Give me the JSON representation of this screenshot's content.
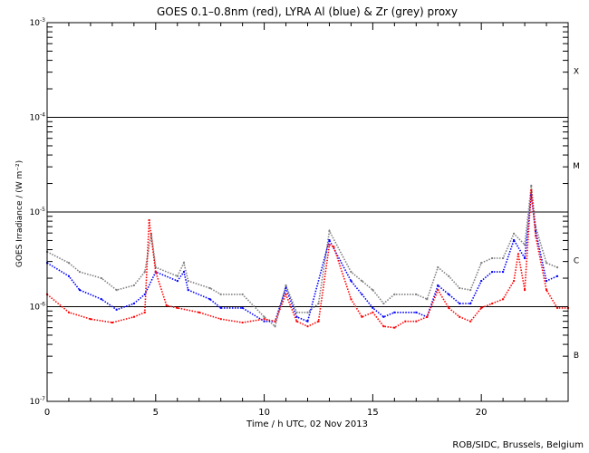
{
  "chart_data": {
    "type": "scatter",
    "title": "GOES 0.1–0.8nm (red), LYRA Al (blue) & Zr (grey) proxy",
    "xlabel": "Time / h UTC, 02 Nov 2013",
    "ylabel": "GOES Irradiance / (W m⁻²)",
    "xlim": [
      0,
      24
    ],
    "ylim": [
      1e-07,
      0.001
    ],
    "yscale": "log",
    "x_ticks": [
      {
        "v": 0,
        "label": "0"
      },
      {
        "v": 5,
        "label": "5"
      },
      {
        "v": 10,
        "label": "10"
      },
      {
        "v": 15,
        "label": "15"
      },
      {
        "v": 20,
        "label": "20"
      }
    ],
    "y_ticks": [
      {
        "v": 0.001,
        "base": "10",
        "exp": "-3"
      },
      {
        "v": 0.0001,
        "base": "10",
        "exp": "-4"
      },
      {
        "v": 1e-05,
        "base": "10",
        "exp": "-5"
      },
      {
        "v": 1e-06,
        "base": "10",
        "exp": "-6"
      },
      {
        "v": 1e-07,
        "base": "10",
        "exp": "-7"
      }
    ],
    "class_labels": [
      {
        "label": "X",
        "v": 0.000316
      },
      {
        "label": "M",
        "v": 3.16e-05
      },
      {
        "label": "C",
        "v": 3.16e-06
      },
      {
        "label": "B",
        "v": 3.16e-07
      }
    ],
    "reference_lines": [
      0.0001,
      1e-05,
      1e-06
    ],
    "series": [
      {
        "name": "LYRA Zr proxy",
        "color": "#808080",
        "points": [
          [
            0,
            3.8e-06
          ],
          [
            1,
            2.9e-06
          ],
          [
            1.5,
            2.33e-06
          ],
          [
            2.5,
            2e-06
          ],
          [
            3.2,
            1.5e-06
          ],
          [
            4,
            1.68e-06
          ],
          [
            4.5,
            2.33e-06
          ],
          [
            4.8,
            5.9e-06
          ],
          [
            5,
            2.6e-06
          ],
          [
            6,
            2.1e-06
          ],
          [
            6.3,
            2.9e-06
          ],
          [
            6.5,
            1.87e-06
          ],
          [
            7.5,
            1.57e-06
          ],
          [
            8,
            1.35e-06
          ],
          [
            9,
            1.35e-06
          ],
          [
            10,
            7.8e-07
          ],
          [
            10.5,
            6.2e-07
          ],
          [
            11,
            1.68e-06
          ],
          [
            11.5,
            8.7e-07
          ],
          [
            12,
            8.7e-07
          ],
          [
            12.5,
            1.08e-06
          ],
          [
            13,
            6.3e-06
          ],
          [
            14,
            2.33e-06
          ],
          [
            14.5,
            1.87e-06
          ],
          [
            15,
            1.5e-06
          ],
          [
            15.5,
            1.08e-06
          ],
          [
            16,
            1.35e-06
          ],
          [
            17,
            1.35e-06
          ],
          [
            17.5,
            1.2e-06
          ],
          [
            18,
            2.6e-06
          ],
          [
            18.5,
            2.1e-06
          ],
          [
            19,
            1.57e-06
          ],
          [
            19.5,
            1.5e-06
          ],
          [
            20,
            2.9e-06
          ],
          [
            20.5,
            3.25e-06
          ],
          [
            21,
            3.25e-06
          ],
          [
            21.5,
            5.9e-06
          ],
          [
            22,
            4.5e-06
          ],
          [
            22.3,
            1.9e-05
          ],
          [
            22.5,
            7e-06
          ],
          [
            23,
            2.9e-06
          ],
          [
            23.5,
            2.6e-06
          ]
        ]
      },
      {
        "name": "LYRA Al proxy",
        "color": "#0000ff",
        "points": [
          [
            0,
            2.9e-06
          ],
          [
            1,
            2.1e-06
          ],
          [
            1.5,
            1.5e-06
          ],
          [
            2.5,
            1.2e-06
          ],
          [
            3.2,
            9.3e-07
          ],
          [
            4,
            1.08e-06
          ],
          [
            4.5,
            1.35e-06
          ],
          [
            5,
            2.33e-06
          ],
          [
            6,
            1.87e-06
          ],
          [
            6.3,
            2.33e-06
          ],
          [
            6.5,
            1.5e-06
          ],
          [
            7.5,
            1.2e-06
          ],
          [
            8,
            9.7e-07
          ],
          [
            9,
            9.7e-07
          ],
          [
            10,
            7e-07
          ],
          [
            10.5,
            7e-07
          ],
          [
            11,
            1.57e-06
          ],
          [
            11.5,
            7.8e-07
          ],
          [
            12,
            7e-07
          ],
          [
            13,
            5.05e-06
          ],
          [
            14,
            1.87e-06
          ],
          [
            14.5,
            1.35e-06
          ],
          [
            15,
            9.7e-07
          ],
          [
            15.5,
            7.8e-07
          ],
          [
            16,
            8.7e-07
          ],
          [
            17,
            8.7e-07
          ],
          [
            17.5,
            7.8e-07
          ],
          [
            18,
            1.68e-06
          ],
          [
            18.5,
            1.35e-06
          ],
          [
            19,
            1.08e-06
          ],
          [
            19.5,
            1.08e-06
          ],
          [
            20,
            1.87e-06
          ],
          [
            20.5,
            2.33e-06
          ],
          [
            21,
            2.33e-06
          ],
          [
            21.5,
            5.05e-06
          ],
          [
            22,
            3.25e-06
          ],
          [
            22.3,
            1.52e-05
          ],
          [
            22.5,
            6.3e-06
          ],
          [
            23,
            1.87e-06
          ],
          [
            23.5,
            2.1e-06
          ]
        ]
      },
      {
        "name": "GOES 0.1-0.8nm",
        "color": "#ff0000",
        "points": [
          [
            0,
            1.35e-06
          ],
          [
            1,
            8.7e-07
          ],
          [
            2,
            7.4e-07
          ],
          [
            3,
            6.8e-07
          ],
          [
            4,
            7.8e-07
          ],
          [
            4.5,
            8.7e-07
          ],
          [
            4.7,
            8.2e-06
          ],
          [
            5,
            2.33e-06
          ],
          [
            5.5,
            1.03e-06
          ],
          [
            6,
            9.7e-07
          ],
          [
            7,
            8.7e-07
          ],
          [
            8,
            7.4e-07
          ],
          [
            9,
            6.8e-07
          ],
          [
            10,
            7.4e-07
          ],
          [
            10.5,
            7e-07
          ],
          [
            11,
            1.35e-06
          ],
          [
            11.5,
            7e-07
          ],
          [
            12,
            6.2e-07
          ],
          [
            12.5,
            7e-07
          ],
          [
            13,
            4.5e-06
          ],
          [
            13.2,
            4.3e-06
          ],
          [
            14,
            1.2e-06
          ],
          [
            14.5,
            7.8e-07
          ],
          [
            15,
            8.7e-07
          ],
          [
            15.5,
            6.2e-07
          ],
          [
            16,
            6e-07
          ],
          [
            16.5,
            7e-07
          ],
          [
            17,
            7e-07
          ],
          [
            17.5,
            7.8e-07
          ],
          [
            18,
            1.5e-06
          ],
          [
            18.5,
            9.7e-07
          ],
          [
            19,
            7.8e-07
          ],
          [
            19.5,
            7e-07
          ],
          [
            20,
            9.7e-07
          ],
          [
            20.5,
            1.08e-06
          ],
          [
            21,
            1.2e-06
          ],
          [
            21.5,
            1.87e-06
          ],
          [
            21.7,
            3.6e-06
          ],
          [
            22,
            1.5e-06
          ],
          [
            22.3,
            1.7e-05
          ],
          [
            22.5,
            5.6e-06
          ],
          [
            23,
            1.5e-06
          ],
          [
            23.5,
            9.7e-07
          ],
          [
            24,
            9.7e-07
          ]
        ]
      }
    ]
  },
  "credit": "ROB/SIDC, Brussels, Belgium"
}
